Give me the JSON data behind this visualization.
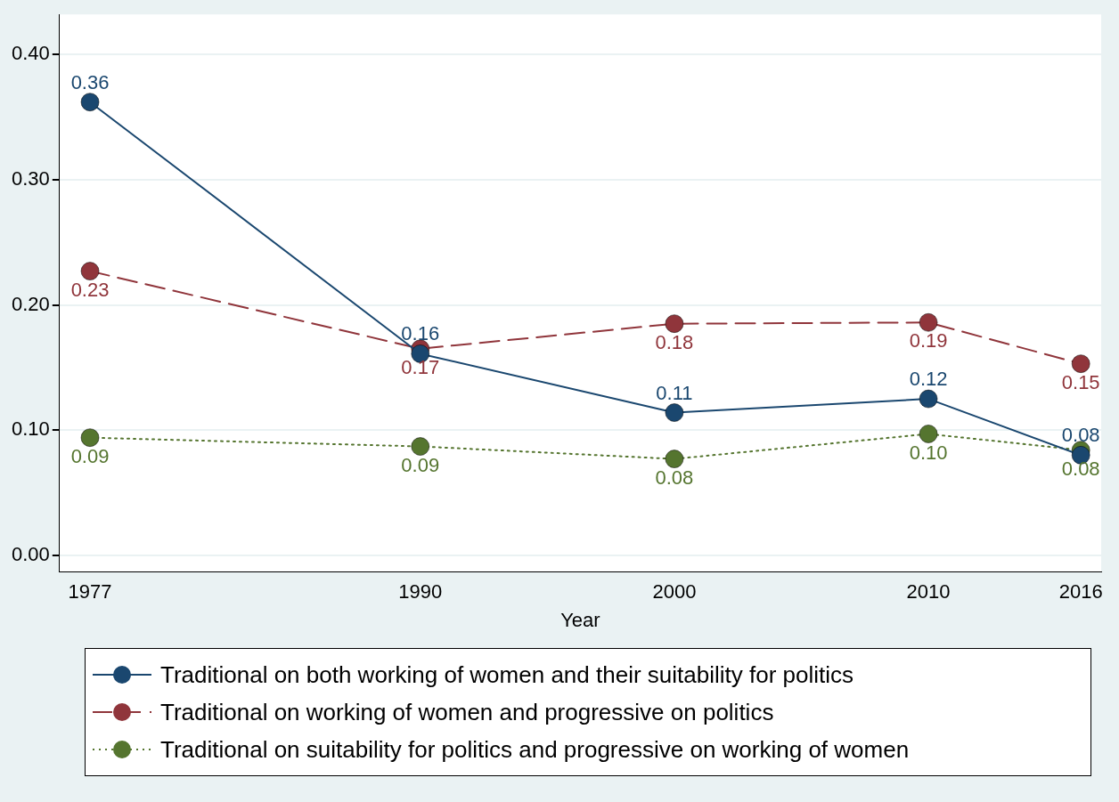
{
  "chart_data": {
    "type": "line",
    "xlabel": "Year",
    "x": [
      1977,
      1990,
      2000,
      2010,
      2016
    ],
    "xlim": [
      1975.8,
      2016.8
    ],
    "xticks": [
      1977,
      1990,
      2000,
      2010,
      2016
    ],
    "ylim": [
      -0.013,
      0.432
    ],
    "yticks": [
      {
        "value": 0,
        "label": "0.00"
      },
      {
        "value": 0.1,
        "label": "0.10"
      },
      {
        "value": 0.2,
        "label": "0.20"
      },
      {
        "value": 0.3,
        "label": "0.30"
      },
      {
        "value": 0.4,
        "label": "0.40"
      }
    ],
    "series": [
      {
        "name": "Traditional on both working of women and their suitability for politics",
        "color": "#1a476f",
        "line_style": "solid",
        "values": [
          0.362,
          0.161,
          0.114,
          0.125,
          0.08
        ],
        "value_labels": [
          "0.36",
          "0.16",
          "0.11",
          "0.12",
          "0.08"
        ]
      },
      {
        "name": "Traditional on working of women and progressive on politics",
        "color": "#90353b",
        "line_style": "dashed",
        "values": [
          0.227,
          0.165,
          0.185,
          0.186,
          0.153
        ],
        "value_labels": [
          "0.23",
          "0.17",
          "0.18",
          "0.19",
          "0.15"
        ]
      },
      {
        "name": "Traditional on suitability for politics and progressive on working of women",
        "color": "#55752f",
        "line_style": "dotted",
        "values": [
          0.094,
          0.087,
          0.077,
          0.097,
          0.084
        ],
        "value_labels": [
          "0.09",
          "0.09",
          "0.08",
          "0.10",
          "0.08"
        ]
      }
    ],
    "marker": "circle",
    "grid": "y",
    "legend": "bottom"
  }
}
